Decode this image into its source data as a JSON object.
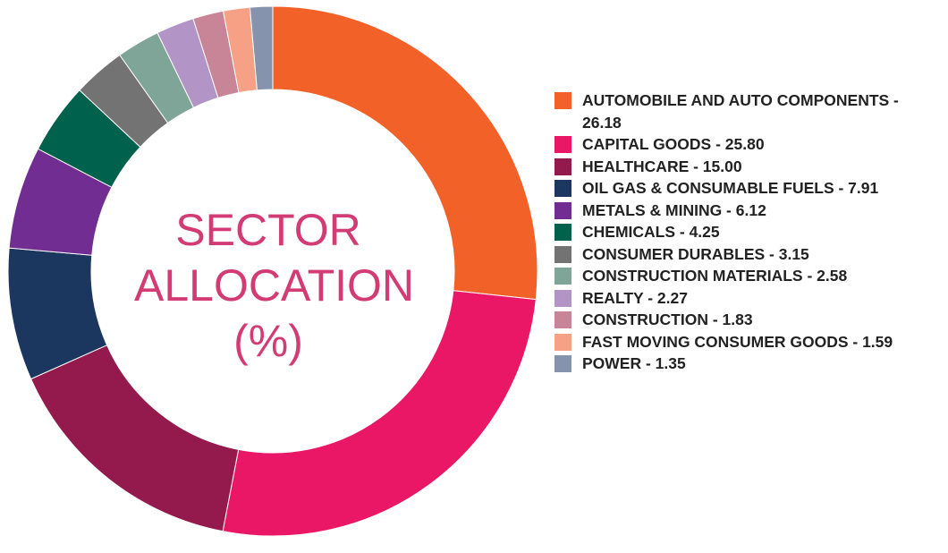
{
  "chart_data": {
    "type": "pie",
    "title": "SECTOR ALLOCATION (%)",
    "title_lines": [
      "SECTOR",
      "ALLOCATION",
      "(%)"
    ],
    "legend_position": "right",
    "slices": [
      {
        "label": "AUTOMOBILE AND AUTO COMPONENTS - 26.18",
        "value": 26.18,
        "color": "#f26127"
      },
      {
        "label": "CAPITAL GOODS - 25.80",
        "value": 25.8,
        "color": "#ea1766"
      },
      {
        "label": "HEALTHCARE - 15.00",
        "value": 15.0,
        "color": "#941a4d"
      },
      {
        "label": "OIL GAS & CONSUMABLE FUELS - 7.91",
        "value": 7.91,
        "color": "#1b3760"
      },
      {
        "label": "METALS & MINING - 6.12",
        "value": 6.12,
        "color": "#712d91"
      },
      {
        "label": "CHEMICALS - 4.25",
        "value": 4.25,
        "color": "#00614c"
      },
      {
        "label": "CONSUMER DURABLES - 3.15",
        "value": 3.15,
        "color": "#737373"
      },
      {
        "label": "CONSTRUCTION MATERIALS - 2.58",
        "value": 2.58,
        "color": "#7ea598"
      },
      {
        "label": "REALTY - 2.27",
        "value": 2.27,
        "color": "#b394c7"
      },
      {
        "label": "CONSTRUCTION - 1.83",
        "value": 1.83,
        "color": "#c88598"
      },
      {
        "label": "FAST MOVING CONSUMER GOODS - 1.59",
        "value": 1.59,
        "color": "#f6a185"
      },
      {
        "label": "POWER - 1.35",
        "value": 1.35,
        "color": "#8593ad"
      }
    ]
  }
}
